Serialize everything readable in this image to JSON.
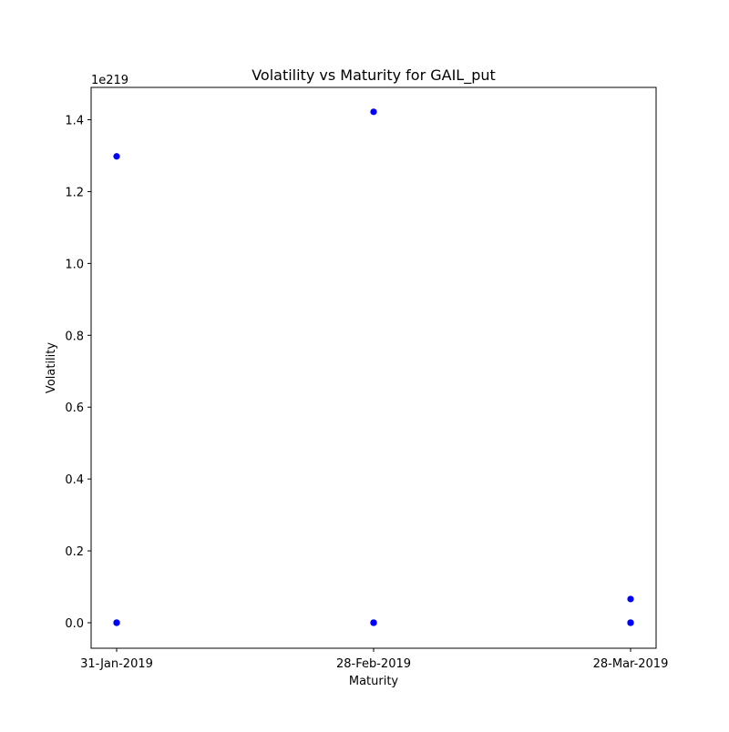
{
  "chart_data": {
    "type": "scatter",
    "title": "Volatility vs Maturity for GAIL_put",
    "xlabel": "Maturity",
    "ylabel": "Volatility",
    "x_axis_type": "category",
    "categories": [
      "31-Jan-2019",
      "28-Feb-2019",
      "28-Mar-2019"
    ],
    "y_scale_label": "1e219",
    "y_scale_factor": 1e+219,
    "ylim": [
      -0.071,
      1.49
    ],
    "yticks": [
      0.0,
      0.2,
      0.4,
      0.6,
      0.8,
      1.0,
      1.2,
      1.4
    ],
    "ytick_labels": [
      "0.0",
      "0.2",
      "0.4",
      "0.6",
      "0.8",
      "1.0",
      "1.2",
      "1.4"
    ],
    "grid": false,
    "legend": false,
    "marker_color": "#0000ff",
    "series": [
      {
        "points": [
          {
            "x": "31-Jan-2019",
            "y": 1.298
          },
          {
            "x": "31-Jan-2019",
            "y": 0.0
          },
          {
            "x": "31-Jan-2019",
            "y": 0.0
          },
          {
            "x": "31-Jan-2019",
            "y": 0.0
          },
          {
            "x": "28-Feb-2019",
            "y": 1.422
          },
          {
            "x": "28-Feb-2019",
            "y": 0.0
          },
          {
            "x": "28-Feb-2019",
            "y": 0.0
          },
          {
            "x": "28-Feb-2019",
            "y": 0.0
          },
          {
            "x": "28-Mar-2019",
            "y": 0.066
          },
          {
            "x": "28-Mar-2019",
            "y": 0.0
          },
          {
            "x": "28-Mar-2019",
            "y": 0.0
          },
          {
            "x": "28-Mar-2019",
            "y": 0.0
          }
        ]
      }
    ]
  }
}
